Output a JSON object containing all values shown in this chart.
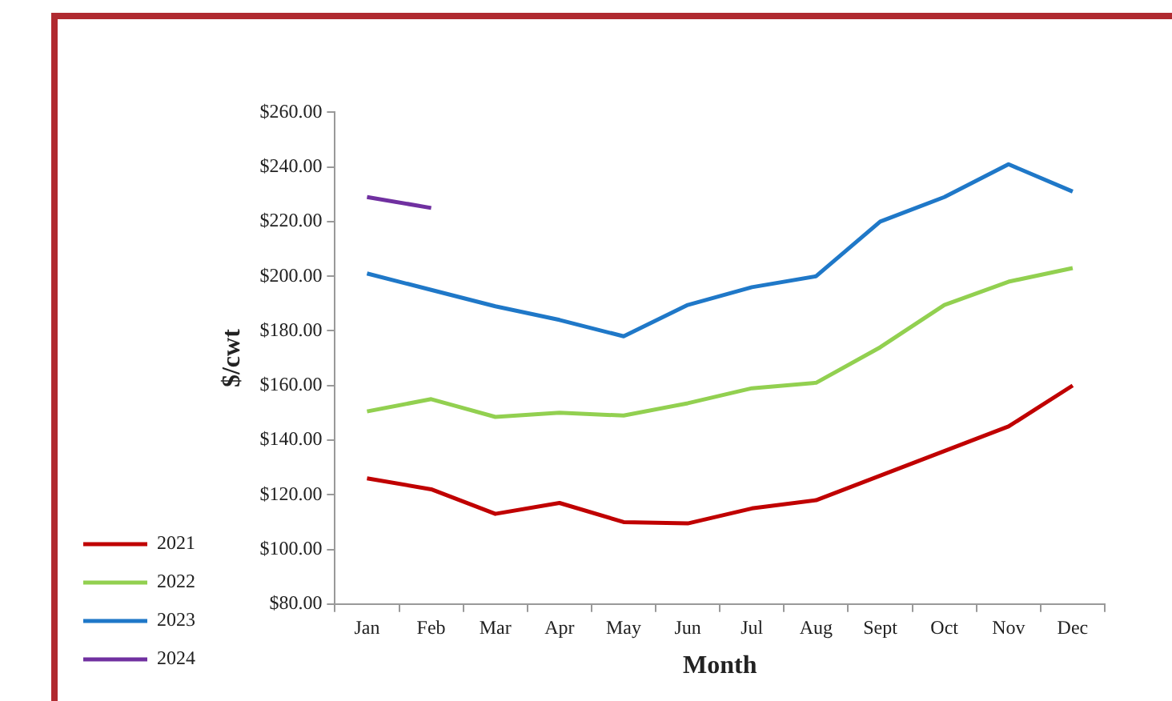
{
  "chart_data": {
    "type": "line",
    "xlabel": "Month",
    "ylabel": "$/cwt",
    "categories": [
      "Jan",
      "Feb",
      "Mar",
      "Apr",
      "May",
      "Jun",
      "Jul",
      "Aug",
      "Sept",
      "Oct",
      "Nov",
      "Dec"
    ],
    "series": [
      {
        "name": "2021",
        "color": "#c00000",
        "values": [
          126,
          122,
          113,
          117,
          110,
          109.5,
          115,
          118,
          127,
          136,
          145,
          160
        ]
      },
      {
        "name": "2022",
        "color": "#92d050",
        "values": [
          150.5,
          155,
          148.5,
          150,
          149,
          153.5,
          159,
          161,
          174,
          189.5,
          198,
          203
        ]
      },
      {
        "name": "2023",
        "color": "#1f78c8",
        "values": [
          201,
          195,
          189,
          184,
          178,
          189.5,
          196,
          200,
          220,
          229,
          241,
          231
        ]
      },
      {
        "name": "2024",
        "color": "#7030a0",
        "values": [
          229,
          225,
          null,
          null,
          null,
          null,
          null,
          null,
          null,
          null,
          null,
          null
        ]
      }
    ],
    "ylim": [
      80,
      260
    ],
    "yticks": [
      {
        "value": 80,
        "label": "$80.00"
      },
      {
        "value": 100,
        "label": "$100.00"
      },
      {
        "value": 120,
        "label": "$120.00"
      },
      {
        "value": 140,
        "label": "$140.00"
      },
      {
        "value": 160,
        "label": "$160.00"
      },
      {
        "value": 180,
        "label": "$180.00"
      },
      {
        "value": 200,
        "label": "$200.00"
      },
      {
        "value": 220,
        "label": "$220.00"
      },
      {
        "value": 240,
        "label": "$240.00"
      },
      {
        "value": 260,
        "label": "$260.00"
      }
    ],
    "grid": false,
    "legend": "bottom left",
    "marker": "none",
    "line_style": "solid"
  }
}
